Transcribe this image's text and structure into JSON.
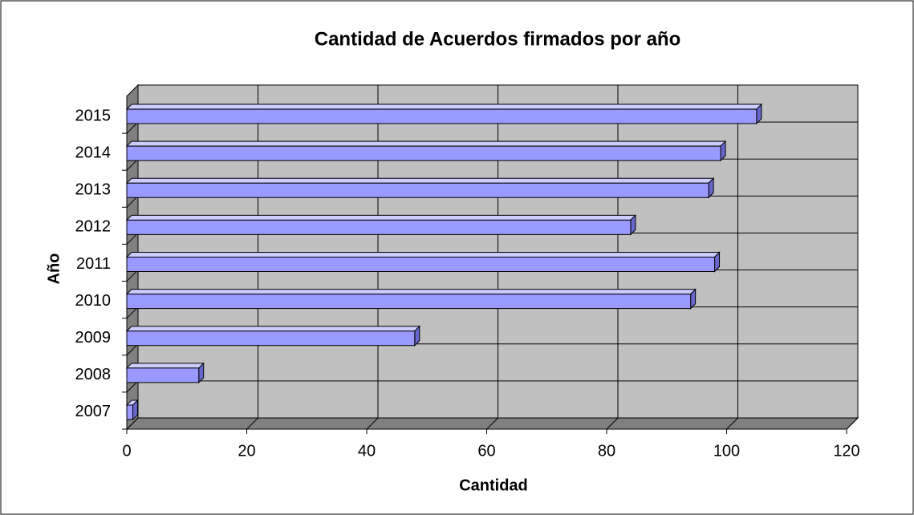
{
  "chart_data": {
    "type": "bar",
    "orientation": "horizontal",
    "title": "Cantidad de Acuerdos firmados por año",
    "x_label": "Cantidad",
    "y_label": "Año",
    "categories": [
      "2007",
      "2008",
      "2009",
      "2010",
      "2011",
      "2012",
      "2013",
      "2014",
      "2015"
    ],
    "values": [
      1,
      12,
      48,
      94,
      98,
      84,
      97,
      99,
      105
    ],
    "color": "#9999ff",
    "xlim": [
      0,
      120
    ],
    "xticks": [
      0,
      20,
      40,
      60,
      80,
      100,
      120
    ],
    "grid": true
  }
}
